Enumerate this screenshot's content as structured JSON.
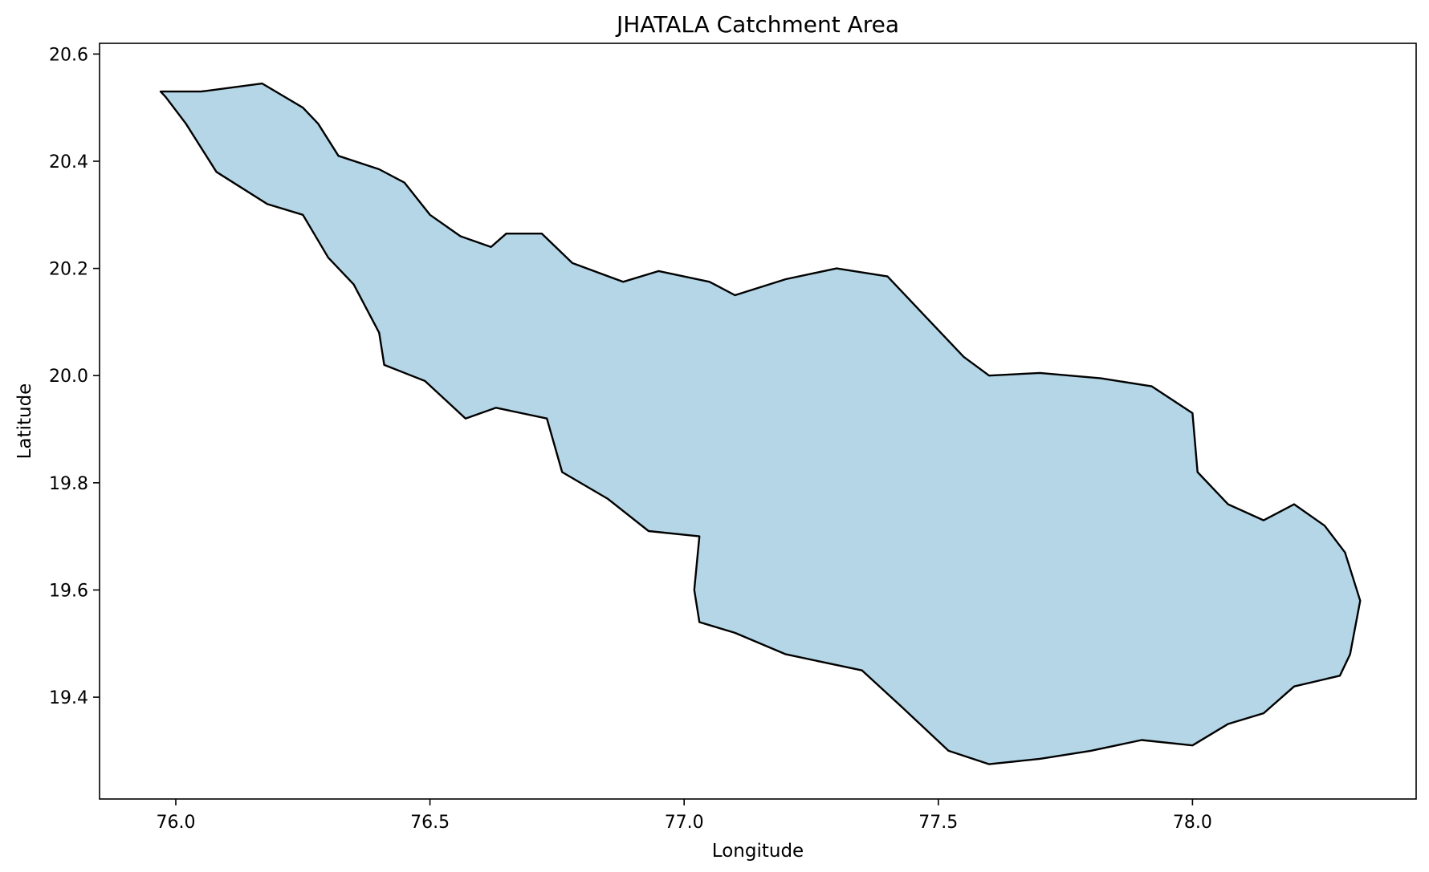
{
  "chart_data": {
    "type": "map",
    "title": "JHATALA Catchment Area",
    "xlabel": "Longitude",
    "ylabel": "Latitude",
    "xlim": [
      75.85,
      78.44
    ],
    "ylim": [
      19.21,
      20.62
    ],
    "xticks": [
      76.0,
      76.5,
      77.0,
      77.5,
      78.0
    ],
    "xtick_labels": [
      "76.0",
      "76.5",
      "77.0",
      "77.5",
      "78.0"
    ],
    "yticks": [
      19.4,
      19.6,
      19.8,
      20.0,
      20.2,
      20.4,
      20.6
    ],
    "ytick_labels": [
      "19.4",
      "19.6",
      "19.8",
      "20.0",
      "20.2",
      "20.4",
      "20.6"
    ],
    "grid": false,
    "fill_color": "#b4d6e6",
    "edge_color": "#000000",
    "boundary": [
      [
        75.97,
        20.53
      ],
      [
        76.05,
        20.53
      ],
      [
        76.17,
        20.545
      ],
      [
        76.25,
        20.5
      ],
      [
        76.28,
        20.47
      ],
      [
        76.32,
        20.41
      ],
      [
        76.4,
        20.385
      ],
      [
        76.45,
        20.36
      ],
      [
        76.5,
        20.3
      ],
      [
        76.56,
        20.26
      ],
      [
        76.62,
        20.24
      ],
      [
        76.65,
        20.265
      ],
      [
        76.72,
        20.265
      ],
      [
        76.78,
        20.21
      ],
      [
        76.88,
        20.175
      ],
      [
        76.95,
        20.195
      ],
      [
        77.05,
        20.175
      ],
      [
        77.1,
        20.15
      ],
      [
        77.2,
        20.18
      ],
      [
        77.3,
        20.2
      ],
      [
        77.4,
        20.185
      ],
      [
        77.47,
        20.115
      ],
      [
        77.55,
        20.035
      ],
      [
        77.6,
        20.0
      ],
      [
        77.7,
        20.005
      ],
      [
        77.82,
        19.995
      ],
      [
        77.92,
        19.98
      ],
      [
        78.0,
        19.93
      ],
      [
        78.01,
        19.82
      ],
      [
        78.07,
        19.76
      ],
      [
        78.14,
        19.73
      ],
      [
        78.2,
        19.76
      ],
      [
        78.26,
        19.72
      ],
      [
        78.3,
        19.67
      ],
      [
        78.33,
        19.58
      ],
      [
        78.31,
        19.48
      ],
      [
        78.29,
        19.44
      ],
      [
        78.2,
        19.42
      ],
      [
        78.14,
        19.37
      ],
      [
        78.07,
        19.35
      ],
      [
        78.0,
        19.31
      ],
      [
        77.9,
        19.32
      ],
      [
        77.8,
        19.3
      ],
      [
        77.7,
        19.285
      ],
      [
        77.6,
        19.275
      ],
      [
        77.52,
        19.3
      ],
      [
        77.43,
        19.38
      ],
      [
        77.35,
        19.45
      ],
      [
        77.2,
        19.48
      ],
      [
        77.1,
        19.52
      ],
      [
        77.03,
        19.54
      ],
      [
        77.02,
        19.6
      ],
      [
        77.03,
        19.7
      ],
      [
        76.93,
        19.71
      ],
      [
        76.85,
        19.77
      ],
      [
        76.76,
        19.82
      ],
      [
        76.73,
        19.92
      ],
      [
        76.63,
        19.94
      ],
      [
        76.57,
        19.92
      ],
      [
        76.49,
        19.99
      ],
      [
        76.41,
        20.02
      ],
      [
        76.4,
        20.08
      ],
      [
        76.35,
        20.17
      ],
      [
        76.3,
        20.22
      ],
      [
        76.25,
        20.3
      ],
      [
        76.18,
        20.32
      ],
      [
        76.08,
        20.38
      ],
      [
        76.02,
        20.47
      ],
      [
        75.98,
        20.52
      ]
    ]
  }
}
